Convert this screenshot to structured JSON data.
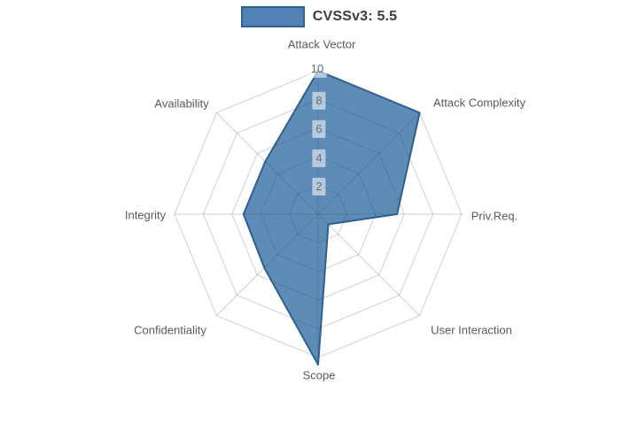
{
  "legend": {
    "label": "CVSSv3: 5.5"
  },
  "chart_data": {
    "type": "radar",
    "title": "",
    "categories": [
      "Attack Vector",
      "Attack Complexity",
      "Priv.Req.",
      "User Interaction",
      "Scope",
      "Confidentiality",
      "Integrity",
      "Availability"
    ],
    "series": [
      {
        "name": "CVSSv3: 5.5",
        "values": [
          10,
          10,
          5.5,
          1,
          10.5,
          5.3,
          5.2,
          5.2
        ]
      }
    ],
    "radial_ticks": [
      2,
      4,
      6,
      8,
      10
    ],
    "radial_range": [
      0,
      10.5
    ],
    "start_axis": "top",
    "direction": "clockwise",
    "grid": true,
    "legend_position": "top-center",
    "colors": {
      "fill": "#4d7fae",
      "fill_opacity": 0.9,
      "stroke": "#2f5f92",
      "grid": "#2e4a66",
      "grid_opacity": 0.25,
      "axis_label_text": "#595959",
      "tick_text": "#66707a",
      "tick_box_bg": "rgba(255,255,255,0.55)",
      "legend_text": "#3d3d3d"
    }
  }
}
